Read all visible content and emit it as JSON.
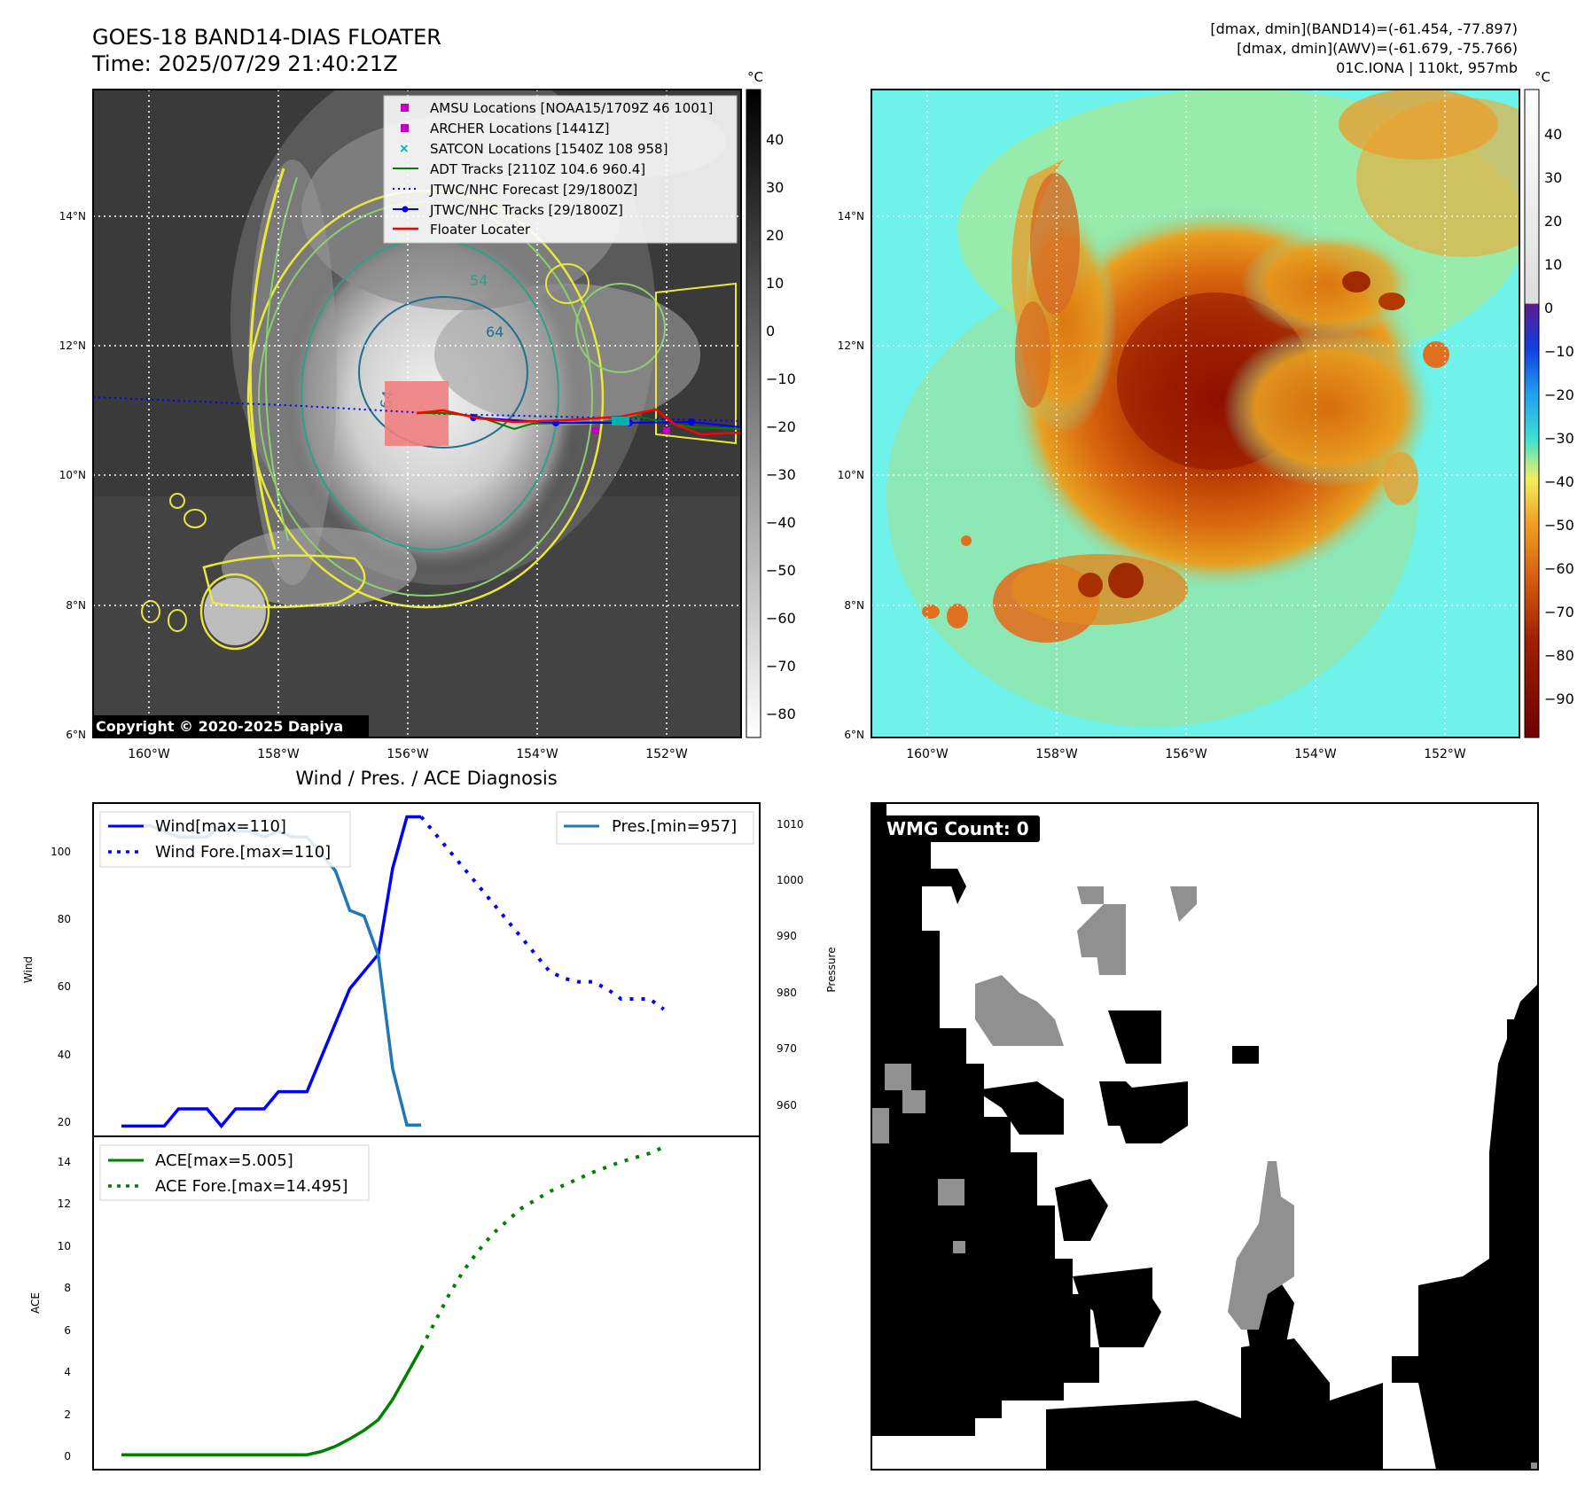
{
  "header": {
    "title": "GOES-18 BAND14-DIAS FLOATER",
    "time": "Time: 2025/07/29 21:40:21Z",
    "dmax_band14": "[dmax, dmin](BAND14)=(-61.454, -77.897)",
    "dmax_awv": "[dmax, dmin](AWV)=(-61.679, -75.766)",
    "storm": "01C.IONA | 110kt, 957mb"
  },
  "colors": {
    "amsu": "#c000c0",
    "satcon": "#00b0b0",
    "adt": "#008000",
    "forecast": "#0000ff",
    "tracks": "#0000ff",
    "floater": "#ff0000",
    "wind": "#0000ff",
    "pres": "#1f77b4",
    "ace": "#008000"
  },
  "map": {
    "lat_ticks": [
      "14°N",
      "12°N",
      "10°N",
      "8°N",
      "6°N"
    ],
    "lon_ticks": [
      "160°W",
      "158°W",
      "156°W",
      "154°W",
      "152°W"
    ],
    "copyright": "Copyright © 2020-2025 Dapiya",
    "contour_labels": [
      "54",
      "64",
      "64"
    ],
    "legend": [
      {
        "label": "AMSU Locations [NOAA15/1709Z 46 1001]",
        "icon": "square-marker"
      },
      {
        "label": "ARCHER Locations [1441Z]",
        "icon": "square-marker"
      },
      {
        "label": "SATCON Locations [1540Z 108 958]",
        "icon": "x-marker"
      },
      {
        "label": "ADT Tracks [2110Z 104.6 960.4]",
        "icon": "solid-line"
      },
      {
        "label": "JTWC/NHC Forecast [29/1800Z]",
        "icon": "dotted-line"
      },
      {
        "label": "JTWC/NHC Tracks [29/1800Z]",
        "icon": "line-dot"
      },
      {
        "label": "Floater Locater",
        "icon": "solid-line"
      }
    ],
    "cbar_gray": {
      "unit": "°C",
      "ticks": [
        "40",
        "30",
        "20",
        "10",
        "0",
        "−10",
        "−20",
        "−30",
        "−40",
        "−50",
        "−60",
        "−70",
        "−80"
      ]
    },
    "cbar_color": {
      "unit": "°C",
      "ticks": [
        "40",
        "30",
        "20",
        "10",
        "0",
        "−10",
        "−20",
        "−30",
        "−40",
        "−50",
        "−60",
        "−70",
        "−80",
        "−90"
      ]
    }
  },
  "diag": {
    "title": "Wind / Pres. / ACE Diagnosis",
    "wind_ylabel": "Wind",
    "pres_ylabel": "Pressure",
    "ace_ylabel": "ACE",
    "wind_legend": [
      "Wind[max=110]",
      "Wind Fore.[max=110]"
    ],
    "pres_legend": [
      "Pres.[min=957]"
    ],
    "ace_legend": [
      "ACE[max=5.005]",
      "ACE Fore.[max=14.495]"
    ],
    "wind_ticks": [
      "20",
      "40",
      "60",
      "80",
      "100"
    ],
    "pres_ticks": [
      "960",
      "970",
      "980",
      "990",
      "1000",
      "1010"
    ],
    "ace_ticks": [
      "0",
      "2",
      "4",
      "6",
      "8",
      "10",
      "12",
      "14"
    ]
  },
  "wmg": {
    "label": "WMG Count: 0"
  },
  "chart_data": [
    {
      "type": "line",
      "title": "Wind / Pres. / ACE Diagnosis",
      "ylabel": "Wind",
      "ylim": [
        17,
        114
      ],
      "series": [
        {
          "name": "Wind[max=110]",
          "values": [
            20,
            20,
            20,
            20,
            25,
            25,
            25,
            20,
            25,
            25,
            25,
            30,
            30,
            30,
            40,
            50,
            60,
            65,
            70,
            95,
            110,
            110
          ]
        },
        {
          "name": "Wind Fore.[max=110]",
          "x_start": 21,
          "values": [
            110,
            105,
            100,
            95,
            90,
            85,
            80,
            75,
            70,
            65,
            63,
            62,
            62,
            60,
            57,
            57,
            57,
            54
          ]
        }
      ]
    },
    {
      "type": "line",
      "ylabel": "Pressure",
      "ylim": [
        955,
        1014
      ],
      "series": [
        {
          "name": "Pres.[min=957]",
          "values": [
            1010,
            1010,
            1010,
            1009,
            1008,
            1008,
            1008,
            1010,
            1009,
            1009,
            1008,
            1009,
            1008,
            1008,
            1005,
            1002,
            995,
            994,
            987,
            967,
            957,
            957
          ]
        }
      ]
    },
    {
      "type": "line",
      "ylabel": "ACE",
      "ylim": [
        -0.7,
        15.0
      ],
      "series": [
        {
          "name": "ACE[max=5.005]",
          "values": [
            0,
            0,
            0,
            0,
            0,
            0,
            0,
            0,
            0,
            0,
            0,
            0,
            0,
            0,
            0.15,
            0.4,
            0.75,
            1.15,
            1.65,
            2.6,
            3.8,
            5.005
          ]
        },
        {
          "name": "ACE Fore.[max=14.495]",
          "x_start": 21,
          "values": [
            5.005,
            6.3,
            7.6,
            8.7,
            9.6,
            10.4,
            11.0,
            11.6,
            12.0,
            12.4,
            12.7,
            13.0,
            13.3,
            13.55,
            13.8,
            14.0,
            14.2,
            14.495
          ]
        }
      ]
    }
  ]
}
